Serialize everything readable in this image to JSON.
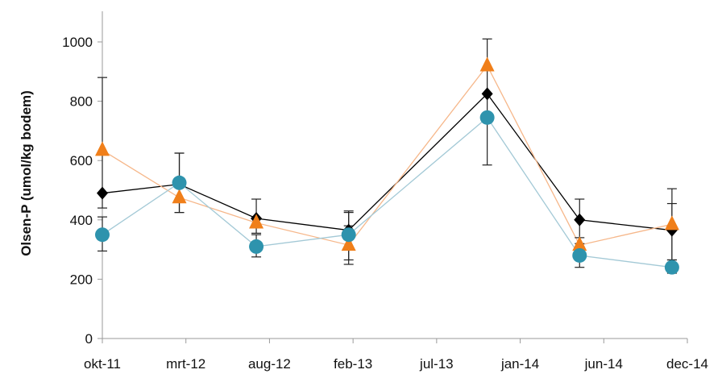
{
  "chart_data": {
    "type": "line",
    "title": "",
    "xlabel": "",
    "ylabel": "Olsen-P (umol/kg bodem)",
    "ylim": [
      0,
      1000
    ],
    "y_ticks": [
      0,
      200,
      400,
      600,
      800,
      1000
    ],
    "x_tick_labels": [
      "okt-11",
      "mrt-12",
      "aug-12",
      "feb-13",
      "jul-13",
      "jan-14",
      "jun-14",
      "dec-14"
    ],
    "xlim": [
      "2011-10",
      "2014-12"
    ],
    "grid": false,
    "legend": "none",
    "series": [
      {
        "color": "#000000",
        "marker": "diamond",
        "points": [
          {
            "x": "2011-10",
            "y": 490,
            "err_hi": 390,
            "err_lo": 50
          },
          {
            "x": "2012-03",
            "y": 520
          },
          {
            "x": "2012-08",
            "y": 405,
            "err_hi": 65,
            "err_lo": 50
          },
          {
            "x": "2013-02",
            "y": 365,
            "err_hi": 60,
            "err_lo": 60
          },
          {
            "x": "2013-11",
            "y": 825,
            "err_hi": 185,
            "err_lo": 240
          },
          {
            "x": "2014-05",
            "y": 400,
            "err_hi": 70,
            "err_lo": 60
          },
          {
            "x": "2014-11",
            "y": 365,
            "err_hi": 90,
            "err_lo": 100
          }
        ]
      },
      {
        "color": "#f07f1a",
        "line_color": "#f6b78a",
        "marker": "triangle",
        "points": [
          {
            "x": "2011-10",
            "y": 635
          },
          {
            "x": "2012-03",
            "y": 475,
            "err_hi": 150,
            "err_lo": 50
          },
          {
            "x": "2012-08",
            "y": 390
          },
          {
            "x": "2013-02",
            "y": 315,
            "err_hi": 65,
            "err_lo": 65
          },
          {
            "x": "2013-11",
            "y": 920
          },
          {
            "x": "2014-05",
            "y": 315
          },
          {
            "x": "2014-11",
            "y": 385,
            "err_hi": 120,
            "err_lo": 150
          }
        ]
      },
      {
        "color": "#2e93ad",
        "line_color": "#a3c9d6",
        "marker": "circle",
        "points": [
          {
            "x": "2011-10",
            "y": 350,
            "err_hi": 60,
            "err_lo": 55
          },
          {
            "x": "2012-03",
            "y": 525,
            "err_hi": 100,
            "err_lo": 100
          },
          {
            "x": "2012-08",
            "y": 310,
            "err_hi": 40,
            "err_lo": 35
          },
          {
            "x": "2013-02",
            "y": 350,
            "err_hi": 80,
            "err_lo": 85
          },
          {
            "x": "2013-11",
            "y": 745
          },
          {
            "x": "2014-05",
            "y": 280,
            "err_hi": 40,
            "err_lo": 40
          },
          {
            "x": "2014-11",
            "y": 240,
            "err_hi": 25,
            "err_lo": 20
          }
        ]
      }
    ]
  }
}
